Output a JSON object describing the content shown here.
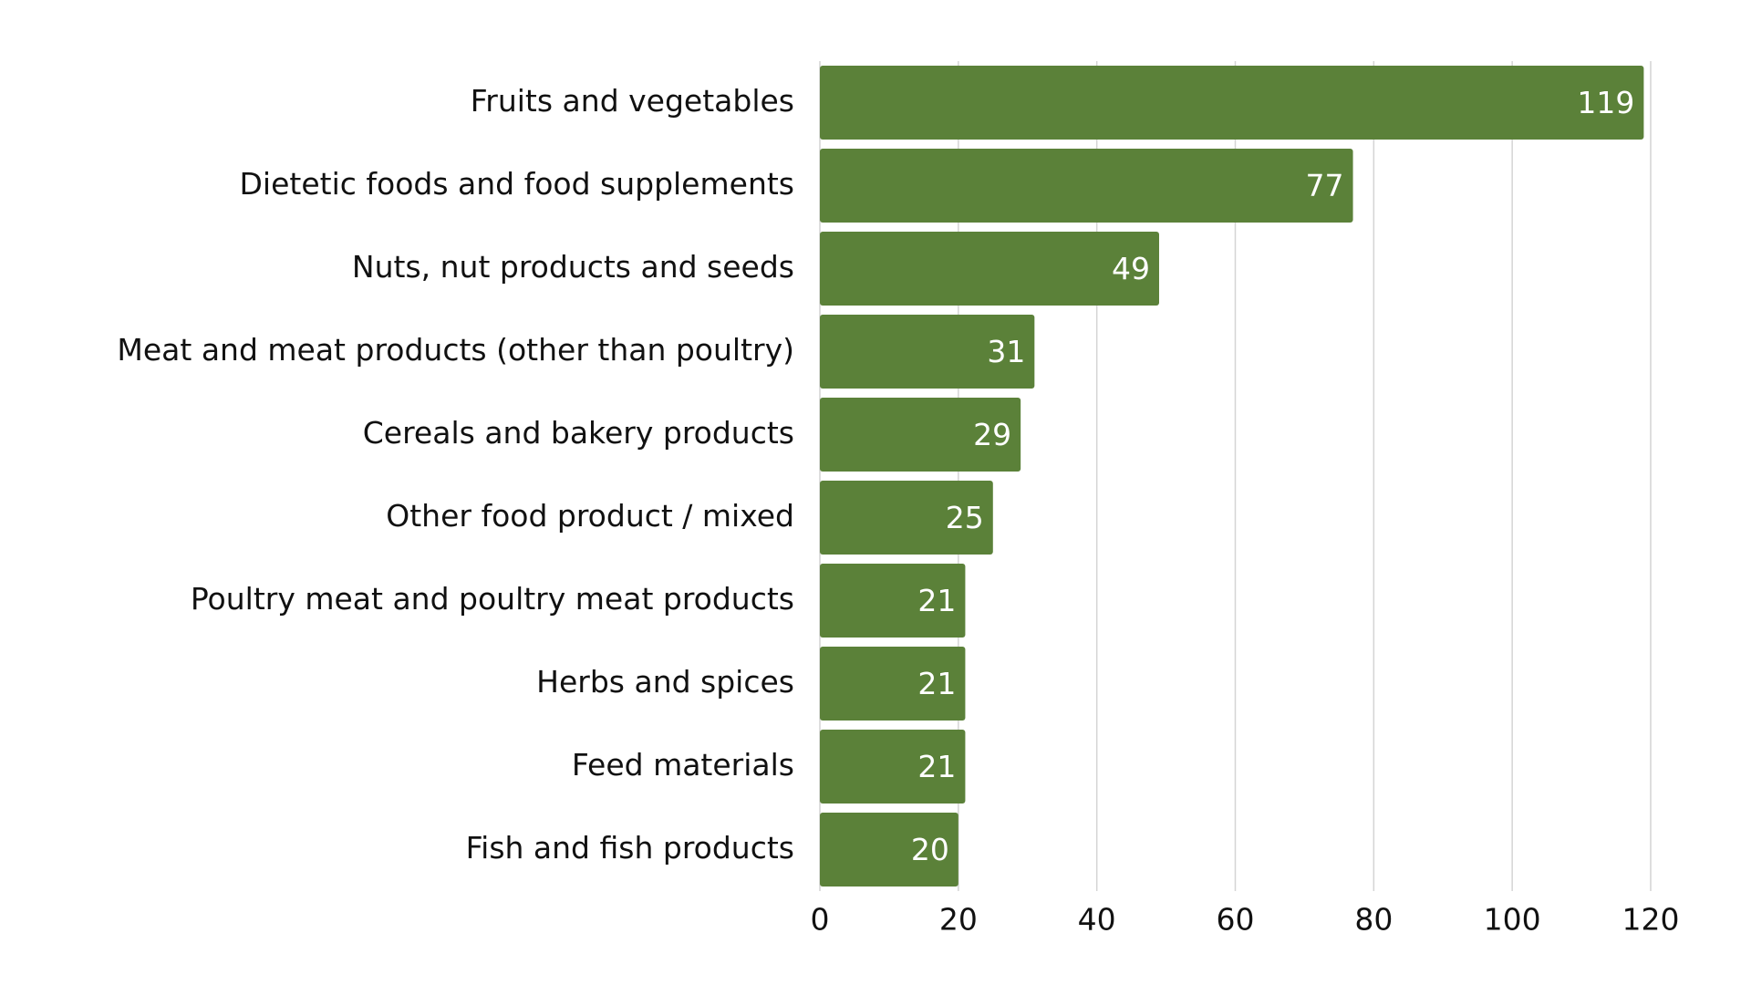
{
  "chart_data": {
    "type": "bar",
    "orientation": "horizontal",
    "categories": [
      "Fruits and vegetables",
      "Dietetic foods and food supplements",
      "Nuts, nut products and seeds",
      "Meat and meat products (other than poultry)",
      "Cereals and bakery products",
      "Other food product / mixed",
      "Poultry meat and poultry meat products",
      "Herbs and spices",
      "Feed materials",
      "Fish and fish products"
    ],
    "values": [
      119,
      77,
      49,
      31,
      29,
      25,
      21,
      21,
      21,
      20
    ],
    "color": "#5b8139",
    "xlim": [
      0,
      120
    ],
    "xticks": [
      0,
      20,
      40,
      60,
      80,
      100,
      120
    ],
    "grid": true
  }
}
